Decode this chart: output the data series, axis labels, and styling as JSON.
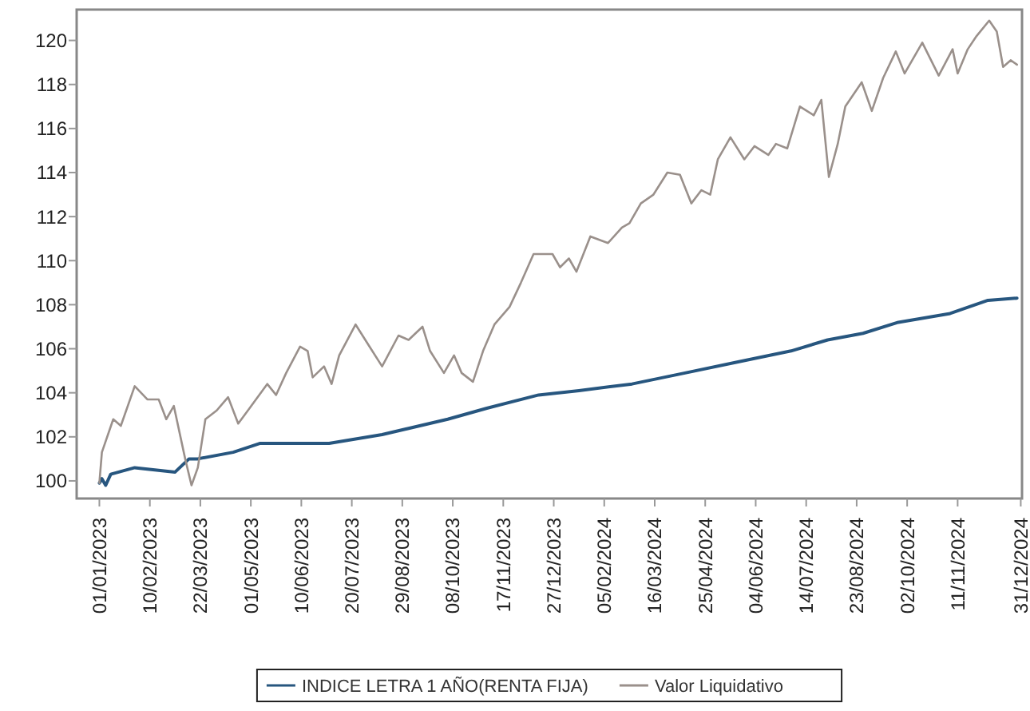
{
  "chart_data": {
    "type": "line",
    "xlim": [
      "2022-12-14",
      "2025-01-01"
    ],
    "ylim": [
      99.2,
      121.4
    ],
    "yticks": [
      100,
      102,
      104,
      106,
      108,
      110,
      112,
      114,
      116,
      118,
      120
    ],
    "xticks": [
      {
        "value": "2023-01-01",
        "label": "01/01/2023"
      },
      {
        "value": "2023-02-10",
        "label": "10/02/2023"
      },
      {
        "value": "2023-03-22",
        "label": "22/03/2023"
      },
      {
        "value": "2023-05-01",
        "label": "01/05/2023"
      },
      {
        "value": "2023-06-10",
        "label": "10/06/2023"
      },
      {
        "value": "2023-07-20",
        "label": "20/07/2023"
      },
      {
        "value": "2023-08-29",
        "label": "29/08/2023"
      },
      {
        "value": "2023-10-08",
        "label": "08/10/2023"
      },
      {
        "value": "2023-11-17",
        "label": "17/11/2023"
      },
      {
        "value": "2023-12-27",
        "label": "27/12/2023"
      },
      {
        "value": "2024-02-05",
        "label": "05/02/2024"
      },
      {
        "value": "2024-03-16",
        "label": "16/03/2024"
      },
      {
        "value": "2024-04-25",
        "label": "25/04/2024"
      },
      {
        "value": "2024-06-04",
        "label": "04/06/2024"
      },
      {
        "value": "2024-07-14",
        "label": "14/07/2024"
      },
      {
        "value": "2024-08-23",
        "label": "23/08/2024"
      },
      {
        "value": "2024-10-02",
        "label": "02/10/2024"
      },
      {
        "value": "2024-11-11",
        "label": "11/11/2024"
      },
      {
        "value": "2024-12-31",
        "label": "31/12/2024"
      }
    ],
    "grid": false,
    "legend": "bottom",
    "line_style": "solid",
    "marker": "none",
    "series": [
      {
        "name": "INDICE LETRA 1 AÑO(RENTA FIJA)",
        "color": "#27567f",
        "x": [
          "2023-01-01",
          "2023-01-03",
          "2023-01-06",
          "2023-01-10",
          "2023-01-29",
          "2023-03-02",
          "2023-03-13",
          "2023-03-20",
          "2023-04-17",
          "2023-05-08",
          "2023-07-02",
          "2023-08-13",
          "2023-10-04",
          "2023-11-04",
          "2023-12-15",
          "2024-01-16",
          "2024-02-27",
          "2024-04-09",
          "2024-05-21",
          "2024-07-02",
          "2024-07-31",
          "2024-08-28",
          "2024-09-25",
          "2024-11-05",
          "2024-12-05",
          "2024-12-28"
        ],
        "values": [
          99.9,
          100.1,
          99.8,
          100.3,
          100.6,
          100.4,
          101.0,
          101.0,
          101.3,
          101.7,
          101.7,
          102.1,
          102.8,
          103.3,
          103.9,
          104.1,
          104.4,
          104.9,
          105.4,
          105.9,
          106.4,
          106.7,
          107.2,
          107.6,
          108.2,
          108.3
        ]
      },
      {
        "name": "Valor Liquidativo",
        "color": "#9a908b",
        "x": [
          "2023-01-01",
          "2023-01-03",
          "2023-01-12",
          "2023-01-18",
          "2023-01-29",
          "2023-02-08",
          "2023-02-17",
          "2023-02-23",
          "2023-03-01",
          "2023-03-10",
          "2023-03-15",
          "2023-03-20",
          "2023-03-26",
          "2023-04-04",
          "2023-04-13",
          "2023-04-21",
          "2023-04-30",
          "2023-05-14",
          "2023-05-21",
          "2023-05-29",
          "2023-06-09",
          "2023-06-15",
          "2023-06-19",
          "2023-06-28",
          "2023-07-04",
          "2023-07-10",
          "2023-07-23",
          "2023-08-03",
          "2023-08-13",
          "2023-08-26",
          "2023-09-03",
          "2023-09-14",
          "2023-09-20",
          "2023-10-01",
          "2023-10-09",
          "2023-10-15",
          "2023-10-24",
          "2023-11-01",
          "2023-11-10",
          "2023-11-22",
          "2023-12-01",
          "2023-12-11",
          "2023-12-26",
          "2024-01-01",
          "2024-01-08",
          "2024-01-14",
          "2024-01-25",
          "2024-02-08",
          "2024-02-19",
          "2024-02-25",
          "2024-03-05",
          "2024-03-15",
          "2024-03-26",
          "2024-04-05",
          "2024-04-14",
          "2024-04-22",
          "2024-04-29",
          "2024-05-05",
          "2024-05-15",
          "2024-05-26",
          "2024-06-03",
          "2024-06-14",
          "2024-06-20",
          "2024-06-29",
          "2024-07-09",
          "2024-07-20",
          "2024-07-26",
          "2024-08-01",
          "2024-08-08",
          "2024-08-14",
          "2024-08-27",
          "2024-09-04",
          "2024-09-13",
          "2024-09-23",
          "2024-09-30",
          "2024-10-14",
          "2024-10-27",
          "2024-11-07",
          "2024-11-11",
          "2024-11-19",
          "2024-11-26",
          "2024-12-06",
          "2024-12-12",
          "2024-12-17",
          "2024-12-23",
          "2024-12-28"
        ],
        "values": [
          99.9,
          101.3,
          102.8,
          102.5,
          104.3,
          103.7,
          103.7,
          102.8,
          103.4,
          101.0,
          99.8,
          100.6,
          102.8,
          103.2,
          103.8,
          102.6,
          103.3,
          104.4,
          103.9,
          104.9,
          106.1,
          105.9,
          104.7,
          105.2,
          104.4,
          105.7,
          107.1,
          106.1,
          105.2,
          106.6,
          106.4,
          107.0,
          105.9,
          104.9,
          105.7,
          104.9,
          104.5,
          105.9,
          107.1,
          107.9,
          109.0,
          110.3,
          110.3,
          109.7,
          110.1,
          109.5,
          111.1,
          110.8,
          111.5,
          111.7,
          112.6,
          113.0,
          114.0,
          113.9,
          112.6,
          113.2,
          113.0,
          114.6,
          115.6,
          114.6,
          115.2,
          114.8,
          115.3,
          115.1,
          117.0,
          116.6,
          117.3,
          113.8,
          115.3,
          117.0,
          118.1,
          116.8,
          118.3,
          119.5,
          118.5,
          119.9,
          118.4,
          119.6,
          118.5,
          119.6,
          120.2,
          120.9,
          120.4,
          118.8,
          119.1,
          118.9
        ]
      }
    ]
  }
}
